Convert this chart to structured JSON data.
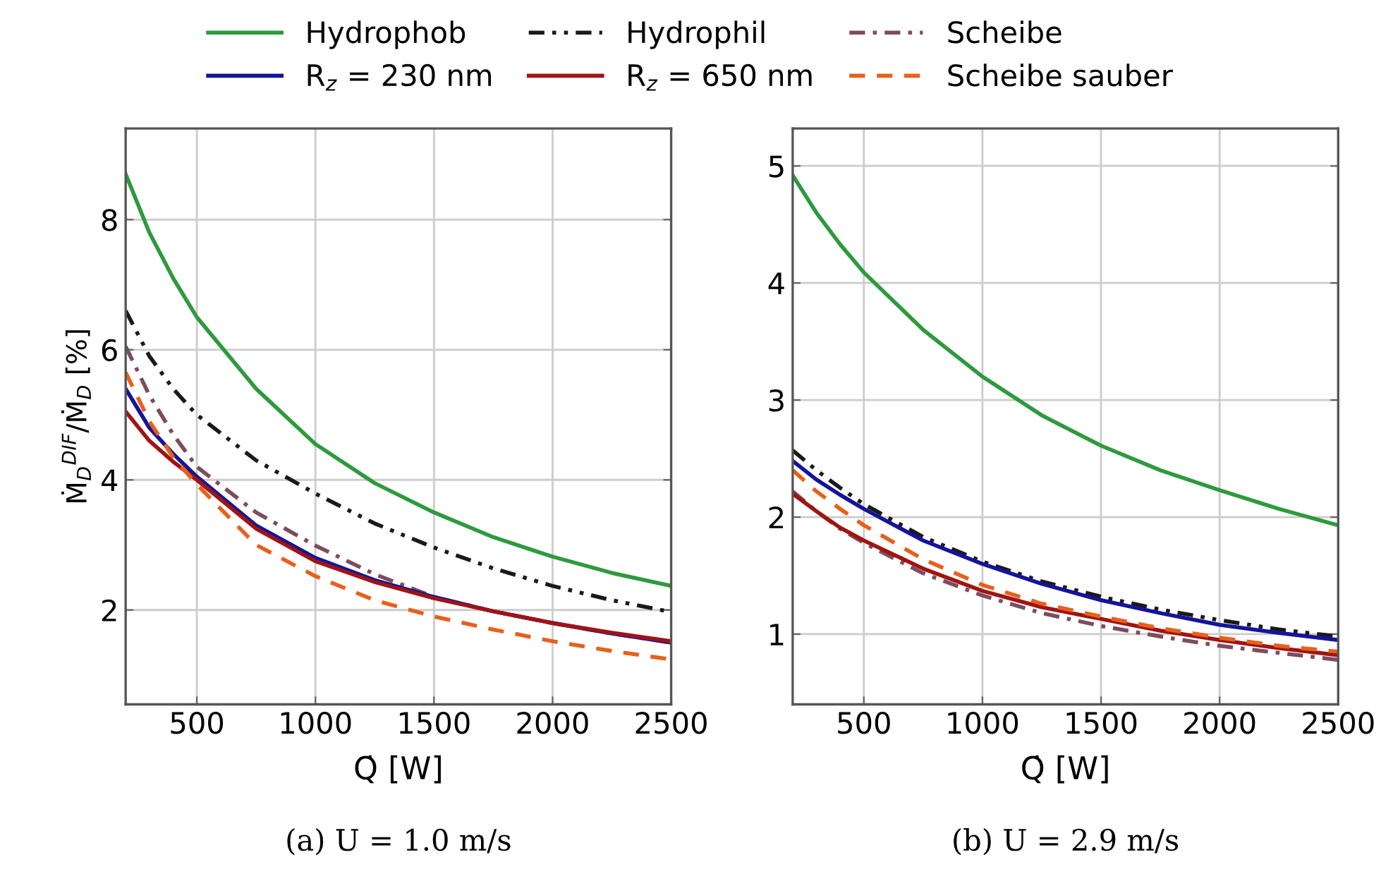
{
  "chart_data": [
    {
      "type": "line",
      "title": "(a) U = 1.0 m/s",
      "xlabel": "Q̇ [W]",
      "ylabel": "Ṁ$_{D}$$^{DIF}$/Ṁ$_{D}$ [%]",
      "x": [
        200,
        300,
        400,
        500,
        750,
        1000,
        1250,
        1500,
        1750,
        2000,
        2250,
        2500
      ],
      "xlim": [
        200,
        2500
      ],
      "xticks": [
        500,
        1000,
        1500,
        2000,
        2500
      ],
      "ylim": [
        0.55,
        9.4
      ],
      "yticks": [
        2,
        4,
        6,
        8
      ],
      "grid": true,
      "legend": "top",
      "series": [
        {
          "name": "Hydrophob",
          "color": "#2e9a3e",
          "line_style": "solid",
          "values": [
            8.7,
            7.8,
            7.1,
            6.5,
            5.4,
            4.55,
            3.95,
            3.5,
            3.12,
            2.82,
            2.57,
            2.37
          ]
        },
        {
          "name": "Hydrophil",
          "color": "#1a1a1a",
          "line_style": "dashdotdotted",
          "values": [
            6.6,
            5.9,
            5.4,
            5.0,
            4.3,
            3.79,
            3.33,
            2.96,
            2.64,
            2.37,
            2.15,
            1.97
          ]
        },
        {
          "name": "Scheibe",
          "color": "#7d4c5e",
          "line_style": "dashdotted",
          "values": [
            6.05,
            5.3,
            4.7,
            4.2,
            3.5,
            2.99,
            2.55,
            2.2,
            1.98,
            1.8,
            1.64,
            1.5
          ]
        },
        {
          "name": "R$_{z}$ = 230 nm",
          "color": "#14149a",
          "line_style": "solid",
          "values": [
            5.4,
            4.8,
            4.4,
            4.05,
            3.3,
            2.8,
            2.46,
            2.2,
            1.98,
            1.8,
            1.64,
            1.5
          ]
        },
        {
          "name": "R$_{z}$ = 650 nm",
          "color": "#a01414",
          "line_style": "solid",
          "values": [
            5.05,
            4.6,
            4.28,
            4.0,
            3.25,
            2.75,
            2.43,
            2.18,
            1.98,
            1.8,
            1.65,
            1.52
          ]
        },
        {
          "name": "Scheibe sauber",
          "color": "#e8601c",
          "line_style": "dashed",
          "values": [
            5.65,
            4.9,
            4.35,
            3.93,
            3.0,
            2.52,
            2.15,
            1.9,
            1.7,
            1.52,
            1.37,
            1.24
          ]
        }
      ]
    },
    {
      "type": "line",
      "title": "(b) U = 2.9 m/s",
      "xlabel": "Q̇ [W]",
      "x": [
        200,
        300,
        400,
        500,
        750,
        1000,
        1250,
        1500,
        1750,
        2000,
        2250,
        2500
      ],
      "xlim": [
        200,
        2500
      ],
      "xticks": [
        500,
        1000,
        1500,
        2000,
        2500
      ],
      "ylim": [
        0.4,
        5.32
      ],
      "yticks": [
        1,
        2,
        3,
        4,
        5
      ],
      "grid": true,
      "series": [
        {
          "color": "#2e9a3e",
          "line_style": "solid",
          "values": [
            4.92,
            4.6,
            4.33,
            4.09,
            3.6,
            3.2,
            2.87,
            2.61,
            2.4,
            2.23,
            2.07,
            1.93
          ]
        },
        {
          "color": "#1a1a1a",
          "line_style": "dashdotdotted",
          "values": [
            2.57,
            2.4,
            2.25,
            2.11,
            1.83,
            1.62,
            1.45,
            1.32,
            1.21,
            1.12,
            1.04,
            0.98
          ]
        },
        {
          "color": "#7d4c5e",
          "line_style": "dashdotted",
          "values": [
            2.22,
            2.05,
            1.9,
            1.78,
            1.52,
            1.33,
            1.18,
            1.07,
            0.98,
            0.9,
            0.84,
            0.78
          ]
        },
        {
          "color": "#14149a",
          "line_style": "solid",
          "values": [
            2.48,
            2.32,
            2.19,
            2.07,
            1.8,
            1.6,
            1.43,
            1.29,
            1.18,
            1.08,
            1.01,
            0.95
          ]
        },
        {
          "color": "#a01414",
          "line_style": "solid",
          "values": [
            2.2,
            2.05,
            1.91,
            1.8,
            1.56,
            1.37,
            1.23,
            1.13,
            1.03,
            0.95,
            0.88,
            0.82
          ]
        },
        {
          "color": "#e8601c",
          "line_style": "dashed",
          "values": [
            2.4,
            2.22,
            2.07,
            1.93,
            1.64,
            1.42,
            1.26,
            1.15,
            1.05,
            0.97,
            0.9,
            0.85
          ]
        }
      ]
    }
  ]
}
